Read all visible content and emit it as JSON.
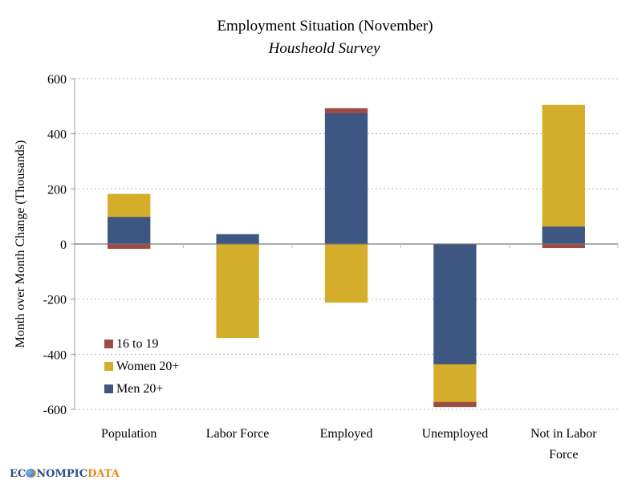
{
  "chart_data": {
    "type": "bar",
    "stacked": true,
    "title": "Employment Situation (November)",
    "subtitle": "Housheold Survey",
    "xlabel": "",
    "ylabel": "Month over Month Change (Thousands)",
    "ylim": [
      -600,
      600
    ],
    "yticks": [
      600,
      400,
      200,
      0,
      -200,
      -400,
      -600
    ],
    "ytick_labels": [
      "600",
      "400",
      "200",
      "0",
      "-200",
      "-400",
      "-600"
    ],
    "grid": true,
    "categories": [
      "Population",
      "Labor Force",
      "Employed",
      "Unemployed",
      "Not in Labor Force"
    ],
    "category_label_lines": [
      [
        "Population"
      ],
      [
        "Labor Force"
      ],
      [
        "Employed"
      ],
      [
        "Unemployed"
      ],
      [
        "Not in Labor",
        "Force"
      ]
    ],
    "series": [
      {
        "name": "Men 20+",
        "color": "#3D5782",
        "values": [
          99,
          35,
          475,
          -437,
          64
        ]
      },
      {
        "name": "Women 20+",
        "color": "#D4AE2A",
        "values": [
          82,
          -340,
          -212,
          -137,
          440
        ]
      },
      {
        "name": "16 to 19",
        "color": "#9E4A45",
        "values": [
          -17,
          0,
          17,
          -17,
          -14
        ]
      }
    ],
    "legend": {
      "position": "bottom-left",
      "entries": [
        "16 to 19",
        "Women 20+",
        "Men 20+"
      ]
    }
  },
  "branding": {
    "logo_part1": "EC",
    "logo_part2": "NOMPIC",
    "logo_part3": "DATA"
  }
}
